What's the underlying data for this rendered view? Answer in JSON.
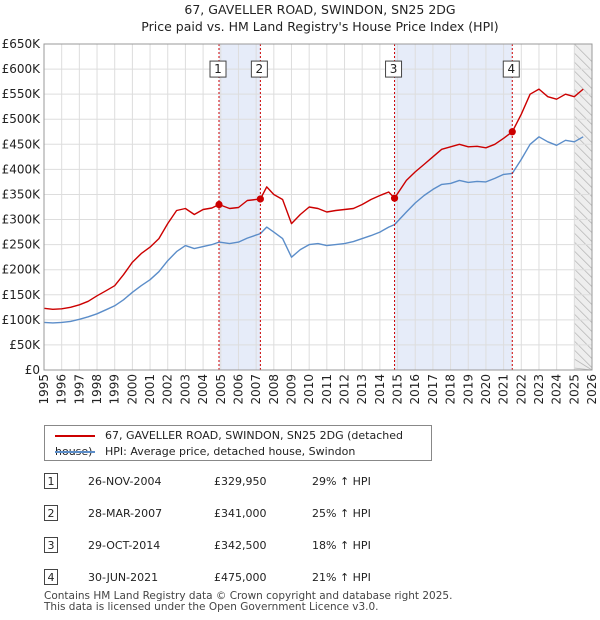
{
  "chart_data": {
    "type": "line",
    "title": "67, GAVELLER ROAD, SWINDON, SN25 2DG",
    "subtitle": "Price paid vs. HM Land Registry's House Price Index (HPI)",
    "x_range": [
      1995,
      2026
    ],
    "ylim": [
      0,
      650000
    ],
    "y_ticks": [
      0,
      50000,
      100000,
      150000,
      200000,
      250000,
      300000,
      350000,
      400000,
      450000,
      500000,
      550000,
      600000,
      650000
    ],
    "y_tick_labels": [
      "£0",
      "£50K",
      "£100K",
      "£150K",
      "£200K",
      "£250K",
      "£300K",
      "£350K",
      "£400K",
      "£450K",
      "£500K",
      "£550K",
      "£600K",
      "£650K"
    ],
    "x_ticks": [
      1995,
      1996,
      1997,
      1998,
      1999,
      2000,
      2001,
      2002,
      2003,
      2004,
      2005,
      2006,
      2007,
      2008,
      2009,
      2010,
      2011,
      2012,
      2013,
      2014,
      2015,
      2016,
      2017,
      2018,
      2019,
      2020,
      2021,
      2022,
      2023,
      2024,
      2025,
      2026
    ],
    "x_tick_labels": [
      "1995",
      "1996",
      "1997",
      "1998",
      "1999",
      "2000",
      "2001",
      "2002",
      "2003",
      "2004",
      "2005",
      "2006",
      "2007",
      "2008",
      "2009",
      "2010",
      "2011",
      "2012",
      "2013",
      "2014",
      "2015",
      "2016",
      "2017",
      "2018",
      "2019",
      "2020",
      "2021",
      "2022",
      "2023",
      "2024",
      "2025",
      "2026"
    ],
    "grid": true,
    "series": [
      {
        "name": "67, GAVELLER ROAD, SWINDON, SN25 2DG (detached house)",
        "color": "#cc0000",
        "x": [
          1995.0,
          1995.5,
          1996.0,
          1996.5,
          1997.0,
          1997.5,
          1998.0,
          1998.5,
          1999.0,
          1999.5,
          2000.0,
          2000.5,
          2001.0,
          2001.5,
          2002.0,
          2002.5,
          2003.0,
          2003.5,
          2004.0,
          2004.5,
          2004.9,
          2005.5,
          2006.0,
          2006.5,
          2007.24,
          2007.6,
          2008.0,
          2008.5,
          2009.0,
          2009.5,
          2010.0,
          2010.5,
          2011.0,
          2011.5,
          2012.0,
          2012.5,
          2013.0,
          2013.5,
          2014.0,
          2014.5,
          2014.83,
          2015.5,
          2016.0,
          2016.5,
          2017.0,
          2017.5,
          2018.0,
          2018.5,
          2019.0,
          2019.5,
          2020.0,
          2020.5,
          2021.0,
          2021.49,
          2022.0,
          2022.5,
          2023.0,
          2023.5,
          2024.0,
          2024.5,
          2025.0,
          2025.5
        ],
        "values": [
          123000,
          121000,
          122000,
          125000,
          130000,
          137000,
          148000,
          158000,
          168000,
          190000,
          215000,
          232000,
          245000,
          262000,
          292000,
          318000,
          322000,
          310000,
          320000,
          323000,
          329950,
          322000,
          324000,
          338000,
          341000,
          365000,
          350000,
          340000,
          292000,
          310000,
          325000,
          322000,
          315000,
          318000,
          320000,
          322000,
          330000,
          340000,
          348000,
          355000,
          342500,
          378000,
          395000,
          410000,
          425000,
          440000,
          445000,
          450000,
          445000,
          446000,
          443000,
          450000,
          462000,
          475000,
          510000,
          550000,
          560000,
          545000,
          540000,
          550000,
          545000,
          560000
        ]
      },
      {
        "name": "HPI: Average price, detached house, Swindon",
        "color": "#5b8dc9",
        "x": [
          1995.0,
          1995.5,
          1996.0,
          1996.5,
          1997.0,
          1997.5,
          1998.0,
          1998.5,
          1999.0,
          1999.5,
          2000.0,
          2000.5,
          2001.0,
          2001.5,
          2002.0,
          2002.5,
          2003.0,
          2003.5,
          2004.0,
          2004.5,
          2004.9,
          2005.5,
          2006.0,
          2006.5,
          2007.24,
          2007.6,
          2008.0,
          2008.5,
          2009.0,
          2009.5,
          2010.0,
          2010.5,
          2011.0,
          2011.5,
          2012.0,
          2012.5,
          2013.0,
          2013.5,
          2014.0,
          2014.5,
          2014.83,
          2015.5,
          2016.0,
          2016.5,
          2017.0,
          2017.5,
          2018.0,
          2018.5,
          2019.0,
          2019.5,
          2020.0,
          2020.5,
          2021.0,
          2021.49,
          2022.0,
          2022.5,
          2023.0,
          2023.5,
          2024.0,
          2024.5,
          2025.0,
          2025.5
        ],
        "values": [
          95000,
          94000,
          95000,
          97000,
          101000,
          106000,
          112000,
          120000,
          128000,
          140000,
          155000,
          168000,
          180000,
          196000,
          218000,
          236000,
          248000,
          242000,
          246000,
          250000,
          255000,
          252000,
          255000,
          263000,
          272000,
          285000,
          275000,
          262000,
          225000,
          240000,
          250000,
          252000,
          248000,
          250000,
          252000,
          256000,
          262000,
          268000,
          275000,
          285000,
          290000,
          315000,
          333000,
          348000,
          360000,
          370000,
          372000,
          378000,
          374000,
          376000,
          375000,
          382000,
          390000,
          392000,
          420000,
          450000,
          465000,
          455000,
          448000,
          458000,
          455000,
          465000
        ]
      }
    ],
    "sale_points": [
      {
        "n": "1",
        "x": 2004.9,
        "y": 329950
      },
      {
        "n": "2",
        "x": 2007.24,
        "y": 341000
      },
      {
        "n": "3",
        "x": 2014.83,
        "y": 342500
      },
      {
        "n": "4",
        "x": 2021.49,
        "y": 475000
      }
    ],
    "shaded_ranges": [
      [
        2004.9,
        2007.24
      ],
      [
        2014.83,
        2021.49
      ]
    ],
    "forecast_start": 2025.0,
    "label_y": 600000
  },
  "legend": {
    "line1": "67, GAVELLER ROAD, SWINDON, SN25 2DG (detached house)",
    "line2": "HPI: Average price, detached house, Swindon"
  },
  "sales": [
    {
      "n": "1",
      "date": "26-NOV-2004",
      "price": "£329,950",
      "hpi": "29% ↑ HPI"
    },
    {
      "n": "2",
      "date": "28-MAR-2007",
      "price": "£341,000",
      "hpi": "25% ↑ HPI"
    },
    {
      "n": "3",
      "date": "29-OCT-2014",
      "price": "£342,500",
      "hpi": "18% ↑ HPI"
    },
    {
      "n": "4",
      "date": "30-JUN-2021",
      "price": "£475,000",
      "hpi": "21% ↑ HPI"
    }
  ],
  "footer": {
    "line1": "Contains HM Land Registry data © Crown copyright and database right 2025.",
    "line2": "This data is licensed under the Open Government Licence v3.0."
  }
}
